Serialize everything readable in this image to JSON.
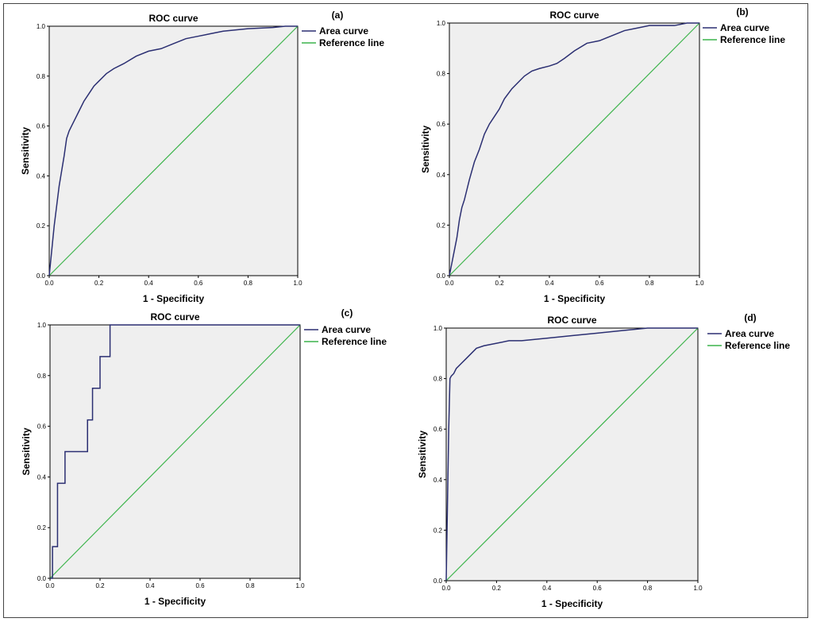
{
  "colors": {
    "plot_background": "#efefef",
    "roc_curve": "#2b2f72",
    "reference_line": "#3cb44b",
    "axis": "#000000"
  },
  "chart_data": [
    {
      "panel_label": "(a)",
      "type": "line",
      "title": "ROC curve",
      "xlabel": "1 - Specificity",
      "ylabel": "Sensitivity",
      "xlim": [
        0,
        1
      ],
      "ylim": [
        0,
        1
      ],
      "xticks": [
        "0.0",
        "0.2",
        "0.4",
        "0.6",
        "0.8",
        "1.0"
      ],
      "yticks": [
        "0.0",
        "0.2",
        "0.4",
        "0.6",
        "0.8",
        "1.0"
      ],
      "grid": false,
      "legend_position": "outside-right",
      "series": [
        {
          "name": "Area curve",
          "x": [
            0,
            0.005,
            0.01,
            0.02,
            0.03,
            0.04,
            0.05,
            0.06,
            0.07,
            0.08,
            0.09,
            0.1,
            0.12,
            0.14,
            0.16,
            0.18,
            0.2,
            0.23,
            0.26,
            0.3,
            0.35,
            0.4,
            0.45,
            0.5,
            0.55,
            0.6,
            0.65,
            0.7,
            0.8,
            0.9,
            0.95,
            1
          ],
          "y": [
            0,
            0.05,
            0.1,
            0.2,
            0.28,
            0.36,
            0.42,
            0.48,
            0.55,
            0.58,
            0.6,
            0.62,
            0.66,
            0.7,
            0.73,
            0.76,
            0.78,
            0.81,
            0.83,
            0.85,
            0.88,
            0.9,
            0.91,
            0.93,
            0.95,
            0.96,
            0.97,
            0.98,
            0.99,
            0.995,
            1,
            1
          ]
        },
        {
          "name": "Reference line",
          "x": [
            0,
            1
          ],
          "y": [
            0,
            1
          ]
        }
      ]
    },
    {
      "panel_label": "(b)",
      "type": "line",
      "title": "ROC curve",
      "xlabel": "1 - Specificity",
      "ylabel": "Sensitivity",
      "xlim": [
        0,
        1
      ],
      "ylim": [
        0,
        1
      ],
      "xticks": [
        "0.0",
        "0.2",
        "0.4",
        "0.6",
        "0.8",
        "1.0"
      ],
      "yticks": [
        "0.0",
        "0.2",
        "0.4",
        "0.6",
        "0.8",
        "1.0"
      ],
      "grid": false,
      "legend_position": "outside-right",
      "series": [
        {
          "name": "Area curve",
          "x": [
            0,
            0.01,
            0.02,
            0.03,
            0.04,
            0.05,
            0.06,
            0.07,
            0.08,
            0.1,
            0.12,
            0.14,
            0.16,
            0.18,
            0.2,
            0.22,
            0.25,
            0.28,
            0.3,
            0.33,
            0.36,
            0.4,
            0.43,
            0.46,
            0.5,
            0.55,
            0.6,
            0.65,
            0.7,
            0.75,
            0.8,
            0.9,
            0.95,
            1
          ],
          "y": [
            0,
            0.05,
            0.1,
            0.15,
            0.22,
            0.27,
            0.3,
            0.34,
            0.38,
            0.45,
            0.5,
            0.56,
            0.6,
            0.63,
            0.66,
            0.7,
            0.74,
            0.77,
            0.79,
            0.81,
            0.82,
            0.83,
            0.84,
            0.86,
            0.89,
            0.92,
            0.93,
            0.95,
            0.97,
            0.98,
            0.99,
            0.99,
            1,
            1
          ]
        },
        {
          "name": "Reference line",
          "x": [
            0,
            1
          ],
          "y": [
            0,
            1
          ]
        }
      ]
    },
    {
      "panel_label": "(c)",
      "type": "line",
      "title": "ROC curve",
      "xlabel": "1 - Specificity",
      "ylabel": "Sensitivity",
      "xlim": [
        0,
        1
      ],
      "ylim": [
        0,
        1
      ],
      "xticks": [
        "0.0",
        "0.2",
        "0.4",
        "0.6",
        "0.8",
        "1.0"
      ],
      "yticks": [
        "0.0",
        "0.2",
        "0.4",
        "0.6",
        "0.8",
        "1.0"
      ],
      "grid": false,
      "legend_position": "outside-right",
      "series": [
        {
          "name": "Area curve",
          "x": [
            0,
            0.01,
            0.01,
            0.03,
            0.03,
            0.06,
            0.06,
            0.15,
            0.15,
            0.17,
            0.17,
            0.2,
            0.2,
            0.24,
            0.24,
            1
          ],
          "y": [
            0,
            0,
            0.125,
            0.125,
            0.375,
            0.375,
            0.5,
            0.5,
            0.625,
            0.625,
            0.75,
            0.75,
            0.875,
            0.875,
            1,
            1
          ]
        },
        {
          "name": "Reference line",
          "x": [
            0,
            1
          ],
          "y": [
            0,
            1
          ]
        }
      ]
    },
    {
      "panel_label": "(d)",
      "type": "line",
      "title": "ROC curve",
      "xlabel": "1 - Specificity",
      "ylabel": "Sensitivity",
      "xlim": [
        0,
        1
      ],
      "ylim": [
        0,
        1
      ],
      "xticks": [
        "0.0",
        "0.2",
        "0.4",
        "0.6",
        "0.8",
        "1.0"
      ],
      "yticks": [
        "0.0",
        "0.2",
        "0.4",
        "0.6",
        "0.8",
        "1.0"
      ],
      "grid": false,
      "legend_position": "outside-right",
      "series": [
        {
          "name": "Area curve",
          "x": [
            0,
            0.005,
            0.01,
            0.015,
            0.02,
            0.03,
            0.04,
            0.06,
            0.08,
            0.1,
            0.12,
            0.15,
            0.2,
            0.25,
            0.3,
            0.4,
            0.5,
            0.6,
            0.7,
            0.8,
            0.9,
            1
          ],
          "y": [
            0,
            0.3,
            0.6,
            0.8,
            0.81,
            0.82,
            0.84,
            0.86,
            0.88,
            0.9,
            0.92,
            0.93,
            0.94,
            0.95,
            0.95,
            0.96,
            0.97,
            0.98,
            0.99,
            1,
            1,
            1
          ]
        },
        {
          "name": "Reference line",
          "x": [
            0,
            1
          ],
          "y": [
            0,
            1
          ]
        }
      ]
    }
  ]
}
